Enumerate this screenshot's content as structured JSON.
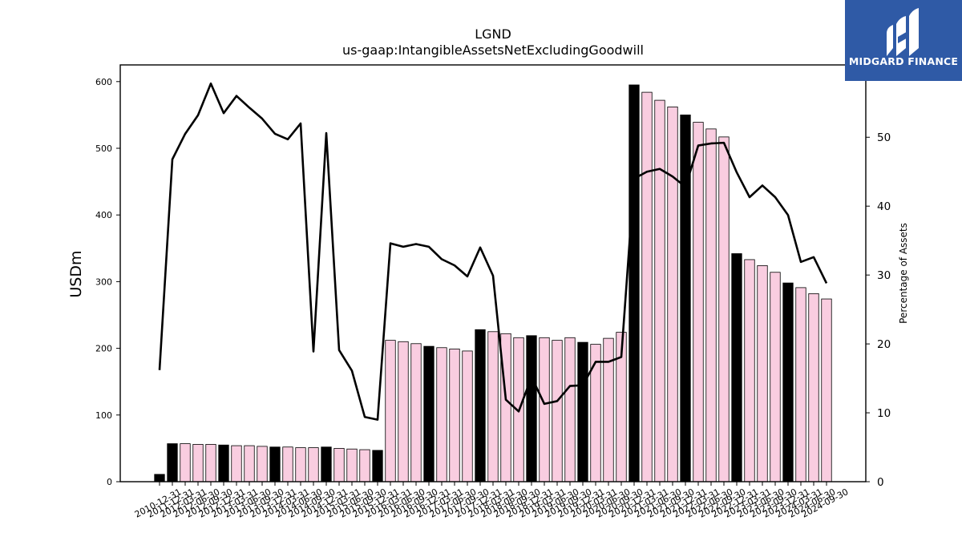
{
  "chart_data": {
    "type": "bar",
    "title": "LGND",
    "subtitle": "us-gaap:IntangibleAssetsNetExcludingGoodwill",
    "ylabel": "USDm",
    "y2label": "Percentage of Assets",
    "ylim": [
      0,
      625
    ],
    "y2lim": [
      0,
      60.5
    ],
    "yticks": [
      0,
      100,
      200,
      300,
      400,
      500,
      600
    ],
    "y2ticks": [
      0,
      10,
      20,
      30,
      40,
      50
    ],
    "categories": [
      "2010-12-31",
      "2011-12-31",
      "2012-03-31",
      "2012-06-30",
      "2012-09-30",
      "2012-12-31",
      "2013-03-31",
      "2013-06-30",
      "2013-09-30",
      "2013-12-31",
      "2014-03-31",
      "2014-06-30",
      "2014-09-30",
      "2014-12-31",
      "2015-03-31",
      "2015-06-30",
      "2015-09-30",
      "2015-12-31",
      "2016-03-31",
      "2016-06-30",
      "2016-09-30",
      "2016-12-31",
      "2017-03-31",
      "2017-06-30",
      "2017-09-30",
      "2017-12-31",
      "2018-03-31",
      "2018-06-30",
      "2018-09-30",
      "2018-12-31",
      "2019-03-31",
      "2019-06-30",
      "2019-09-30",
      "2019-12-31",
      "2020-03-31",
      "2020-06-30",
      "2020-09-30",
      "2020-12-31",
      "2021-03-31",
      "2021-06-30",
      "2021-09-30",
      "2021-12-31",
      "2022-03-31",
      "2022-06-30",
      "2022-09-30",
      "2022-12-31",
      "2023-03-31",
      "2023-06-30",
      "2023-09-30",
      "2023-12-31",
      "2024-03-31",
      "2024-06-30",
      "2024-09-30"
    ],
    "series": [
      {
        "type": "bar",
        "values": [
          11,
          57,
          57,
          56,
          56,
          55,
          54,
          54,
          53,
          52,
          52,
          51,
          51,
          52,
          50,
          49,
          48,
          47,
          212,
          210,
          207,
          203,
          201,
          199,
          196,
          228,
          225,
          222,
          216,
          219,
          216,
          212,
          216,
          209,
          206,
          215,
          224,
          595,
          584,
          572,
          562,
          550,
          539,
          529,
          517,
          342,
          333,
          324,
          314,
          298,
          291,
          282,
          274
        ],
        "annual_flags": [
          1,
          1,
          0,
          0,
          0,
          1,
          0,
          0,
          0,
          1,
          0,
          0,
          0,
          1,
          0,
          0,
          0,
          1,
          0,
          0,
          0,
          1,
          0,
          0,
          0,
          1,
          0,
          0,
          0,
          1,
          0,
          0,
          0,
          1,
          0,
          0,
          0,
          1,
          0,
          0,
          0,
          1,
          0,
          0,
          0,
          1,
          0,
          0,
          0,
          1,
          0,
          0,
          0
        ],
        "color_annual": "#000000",
        "color_quarterly": "#f9cde0"
      },
      {
        "type": "line",
        "values": [
          16.2,
          46.8,
          50.5,
          53.2,
          57.8,
          53.5,
          56.0,
          54.3,
          52.7,
          50.5,
          49.7,
          52.0,
          18.9,
          50.6,
          19.1,
          16.1,
          9.4,
          9.0,
          34.6,
          34.1,
          34.5,
          34.1,
          32.3,
          31.4,
          29.8,
          34.0,
          29.9,
          11.9,
          10.2,
          15.2,
          11.3,
          11.7,
          13.9,
          14.0,
          17.4,
          17.4,
          18.1,
          44.0,
          45.0,
          45.4,
          44.3,
          42.8,
          48.8,
          49.1,
          49.2,
          44.9,
          41.3,
          43.0,
          41.3,
          38.7,
          31.9,
          32.6,
          28.8
        ],
        "color": "#000000"
      }
    ],
    "grid": false,
    "legend": "none"
  },
  "logo": {
    "text": "MIDGARD FINANCE"
  }
}
